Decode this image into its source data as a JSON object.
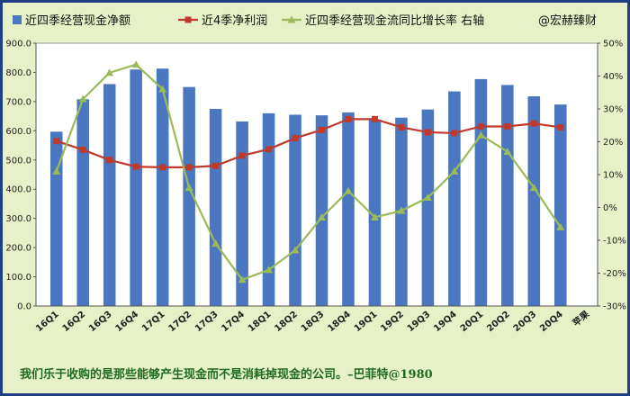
{
  "chart_data": {
    "type": "bar",
    "categories": [
      "16Q1",
      "16Q2",
      "16Q3",
      "16Q4",
      "17Q1",
      "17Q2",
      "17Q3",
      "17Q4",
      "18Q1",
      "18Q2",
      "18Q3",
      "18Q4",
      "19Q1",
      "19Q2",
      "19Q3",
      "19Q4",
      "20Q1",
      "20Q2",
      "20Q3",
      "20Q4"
    ],
    "series": [
      {
        "name": "近四季经营现金净额",
        "type": "bar",
        "axis": "left",
        "color": "#4a77c0",
        "values": [
          597,
          708,
          760,
          810,
          813,
          750,
          675,
          632,
          660,
          655,
          653,
          663,
          638,
          645,
          673,
          735,
          777,
          757,
          718,
          690
        ]
      },
      {
        "name": "近4季净利润",
        "type": "line",
        "axis": "left",
        "color": "#c0392b",
        "marker": "square",
        "values": [
          565,
          535,
          500,
          477,
          475,
          475,
          480,
          515,
          537,
          575,
          603,
          640,
          640,
          612,
          595,
          592,
          615,
          615,
          625,
          612
        ]
      },
      {
        "name": "近四季经营现金流同比增长率 右轴",
        "type": "line",
        "axis": "right",
        "color": "#9bbb59",
        "marker": "triangle",
        "values": [
          11,
          33,
          41,
          43.5,
          36,
          6,
          -11,
          -22,
          -19,
          -13,
          -3,
          5,
          -3,
          -1,
          3,
          11,
          22,
          17,
          6,
          -6
        ]
      }
    ],
    "left_axis": {
      "min": 0,
      "max": 900,
      "step": 100,
      "ticks": [
        "0.0",
        "100.0",
        "200.0",
        "300.0",
        "400.0",
        "500.0",
        "600.0",
        "700.0",
        "800.0",
        "900.0"
      ]
    },
    "right_axis": {
      "min": -30,
      "max": 50,
      "step": 10,
      "ticks": [
        "-30%",
        "-20%",
        "-10%",
        "0%",
        "10%",
        "20%",
        "30%",
        "40%",
        "50%"
      ]
    },
    "extra_label": "苹果",
    "legend_extra": "@宏赫臻财",
    "grid": false,
    "legend": "top"
  },
  "quote": "我们乐于收购的是那些能够产生现金而不是消耗掉现金的公司。–巴菲特@1980"
}
